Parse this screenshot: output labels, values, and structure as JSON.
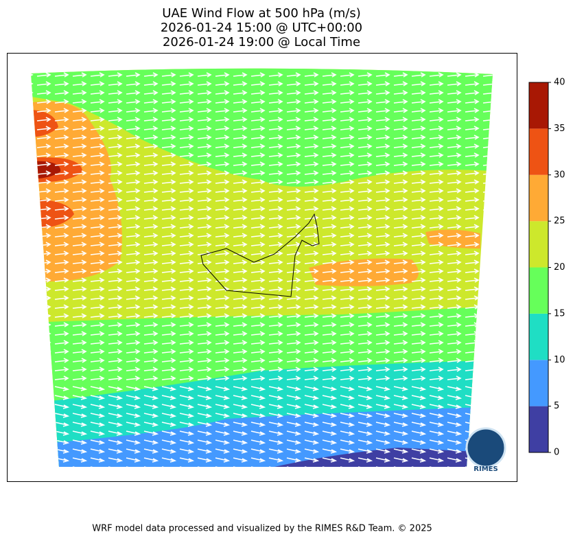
{
  "title": [
    "UAE Wind Flow at 500 hPa (m/s)",
    "2026-01-24 15:00 @ UTC+00:00",
    "2026-01-24 19:00 @ Local Time"
  ],
  "colorbar": {
    "ticks": [
      0,
      5,
      10,
      15,
      20,
      25,
      30,
      35,
      40
    ],
    "colors": [
      "#3f3fa3",
      "#4499ff",
      "#1fdec4",
      "#66ff5a",
      "#cde82c",
      "#ffaa35",
      "#ee5314",
      "#a81804"
    ]
  },
  "logo": "RIMES",
  "footer": "WRF model data processed and visualized by the RIMES R&D Team. © 2025"
}
